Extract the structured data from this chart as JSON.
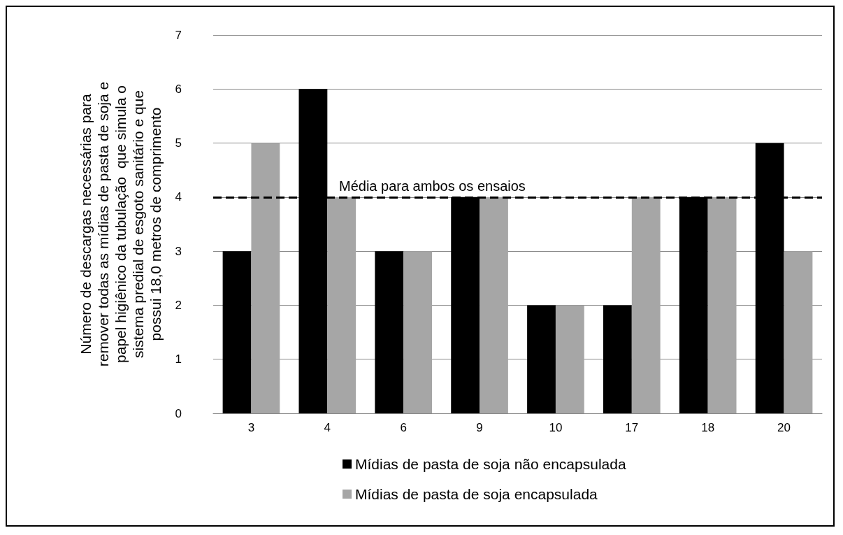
{
  "chart_data": {
    "type": "bar",
    "ylabel": "Número de descargas necessárias para\nremover todas as mídias de pasta de soja e\npapel higiênico da tubulação  que simula o\nsistema predial de esgoto sanitário e que\npossui 18,0 metros de comprimento",
    "categories": [
      "3",
      "4",
      "6",
      "9",
      "10",
      "17",
      "18",
      "20"
    ],
    "series": [
      {
        "name": "Mídias de pasta de soja não encapsulada",
        "color": "#000000",
        "values": [
          3,
          6,
          3,
          4,
          2,
          2,
          4,
          5
        ]
      },
      {
        "name": "Mídias de pasta de soja encapsulada",
        "color": "#a6a6a6",
        "values": [
          5,
          4,
          3,
          4,
          2,
          4,
          4,
          3
        ]
      }
    ],
    "ylim": [
      0,
      7
    ],
    "yticks": [
      0,
      1,
      2,
      3,
      4,
      5,
      6,
      7
    ],
    "grid": "y",
    "legend": "bottom",
    "ref_lines": [
      {
        "axis": "y",
        "value": 4,
        "label": "Média para ambos os ensaios",
        "color": "#000000",
        "line_style": "dashed"
      }
    ]
  }
}
